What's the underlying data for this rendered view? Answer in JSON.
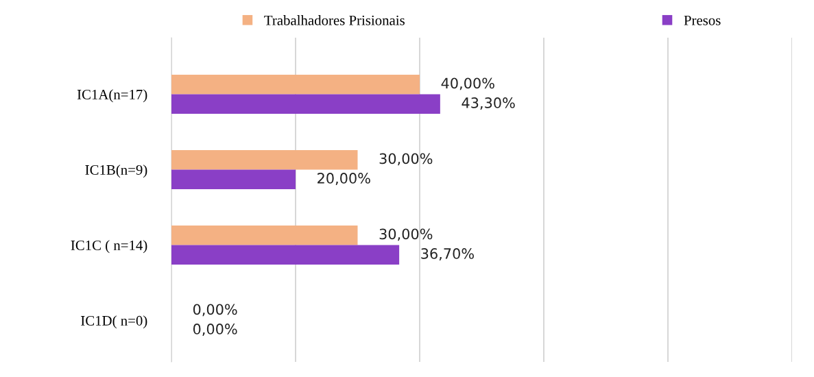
{
  "chart_data": {
    "type": "bar",
    "orientation": "horizontal",
    "categories": [
      "IC1A(n=17)",
      "IC1B(n=9)",
      "IC1C ( n=14)",
      "IC1D( n=0)"
    ],
    "series": [
      {
        "name": "Trabalhadores Prisionais",
        "color": "#f4b183",
        "values": [
          40,
          30,
          30,
          0
        ],
        "value_labels": [
          "40,00%",
          "30,00%",
          "30,00%",
          "0,00%"
        ]
      },
      {
        "name": "Presos",
        "color": "#8a3fc6",
        "values": [
          43.3,
          20,
          36.7,
          0
        ],
        "value_labels": [
          "43,30%",
          "20,00%",
          "36,70%",
          "0,00%"
        ]
      }
    ],
    "xlim": [
      0,
      100
    ],
    "xticks": [
      {
        "value": 0,
        "label": null
      },
      {
        "value": 20,
        "label": null
      },
      {
        "value": 40,
        "label": null
      },
      {
        "value": 60,
        "label": null
      },
      {
        "value": 80,
        "label": null
      },
      {
        "value": 100,
        "label": null
      }
    ],
    "tick_labels": "y",
    "grid": "x",
    "legend": "top"
  }
}
